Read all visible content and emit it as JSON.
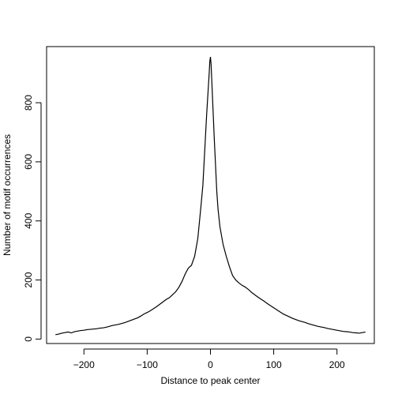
{
  "chart_data": {
    "type": "line",
    "title": "",
    "xlabel": "Distance to peak center",
    "ylabel": "Number of motif occurrences",
    "xlim": [
      -259,
      259
    ],
    "ylim": [
      -15,
      990
    ],
    "grid": false,
    "x_ticks": [
      -200,
      -100,
      0,
      100,
      200
    ],
    "x_tick_labels": [
      "−200",
      "−100",
      "0",
      "100",
      "200"
    ],
    "y_ticks": [
      0,
      200,
      400,
      600,
      800
    ],
    "y_tick_labels": [
      "0",
      "200",
      "400",
      "600",
      "800"
    ],
    "series": [
      {
        "x": [
          -245,
          -240,
          -235,
          -230,
          -225,
          -220,
          -215,
          -210,
          -205,
          -200,
          -195,
          -190,
          -185,
          -180,
          -175,
          -170,
          -165,
          -160,
          -155,
          -150,
          -145,
          -140,
          -135,
          -130,
          -125,
          -120,
          -115,
          -110,
          -105,
          -100,
          -95,
          -90,
          -85,
          -80,
          -75,
          -70,
          -65,
          -60,
          -55,
          -50,
          -45,
          -40,
          -35,
          -30,
          -25,
          -20,
          -15,
          -12,
          -10,
          -8,
          -6,
          -4,
          -2,
          -1,
          0,
          1,
          2,
          4,
          6,
          8,
          10,
          12,
          15,
          20,
          25,
          30,
          35,
          40,
          45,
          50,
          55,
          60,
          65,
          70,
          75,
          80,
          85,
          90,
          95,
          100,
          105,
          110,
          115,
          120,
          125,
          130,
          135,
          140,
          145,
          150,
          155,
          160,
          165,
          170,
          175,
          180,
          185,
          190,
          195,
          200,
          205,
          210,
          215,
          220,
          225,
          230,
          235,
          240,
          245
        ],
        "y": [
          15,
          17,
          20,
          22,
          24,
          21,
          25,
          27,
          29,
          30,
          32,
          33,
          34,
          35,
          37,
          38,
          40,
          43,
          46,
          48,
          50,
          53,
          56,
          60,
          64,
          68,
          72,
          78,
          85,
          90,
          96,
          103,
          110,
          118,
          126,
          134,
          140,
          150,
          160,
          175,
          195,
          220,
          240,
          250,
          280,
          340,
          450,
          520,
          600,
          680,
          760,
          830,
          900,
          940,
          955,
          930,
          880,
          780,
          680,
          590,
          500,
          440,
          380,
          320,
          280,
          245,
          215,
          200,
          190,
          182,
          176,
          168,
          158,
          150,
          142,
          135,
          128,
          120,
          113,
          106,
          99,
          92,
          85,
          80,
          75,
          70,
          66,
          62,
          59,
          56,
          52,
          49,
          46,
          43,
          41,
          39,
          36,
          34,
          32,
          30,
          28,
          26,
          25,
          24,
          22,
          21,
          20,
          22,
          24
        ]
      }
    ]
  }
}
